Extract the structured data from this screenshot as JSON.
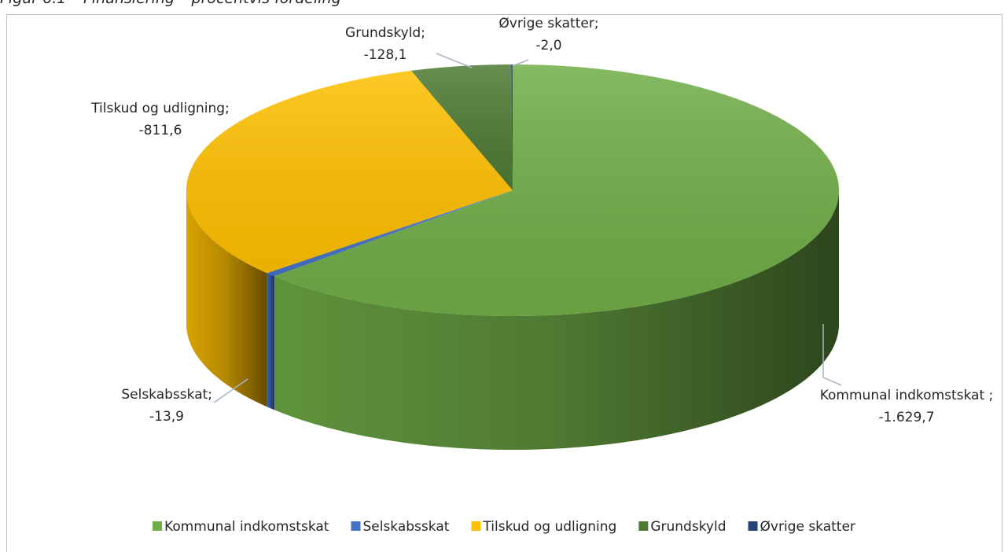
{
  "chart_data": {
    "type": "pie3d",
    "title": "Figur 6.1 – Finansiering – procentvis fordeling",
    "categories": [
      "Kommunal indkomstskat",
      "Selskabsskat",
      "Tilskud og udligning",
      "Grundskyld",
      "Øvrige skatter"
    ],
    "label_names": [
      "Kommunal indkomstskat ;",
      "Selskabsskat;",
      "Tilskud og udligning;",
      "Grundskyld;",
      "Øvrige skatter;"
    ],
    "values": [
      -1629.7,
      -13.9,
      -811.6,
      -128.1,
      -2.0
    ],
    "value_labels": [
      "-1.629,7",
      "-13,9",
      "-811,6",
      "-128,1",
      "-2,0"
    ],
    "colors": [
      "#70ad47",
      "#4472c4",
      "#ffc000",
      "#4e7a33",
      "#264478"
    ],
    "legend": "bottom"
  }
}
